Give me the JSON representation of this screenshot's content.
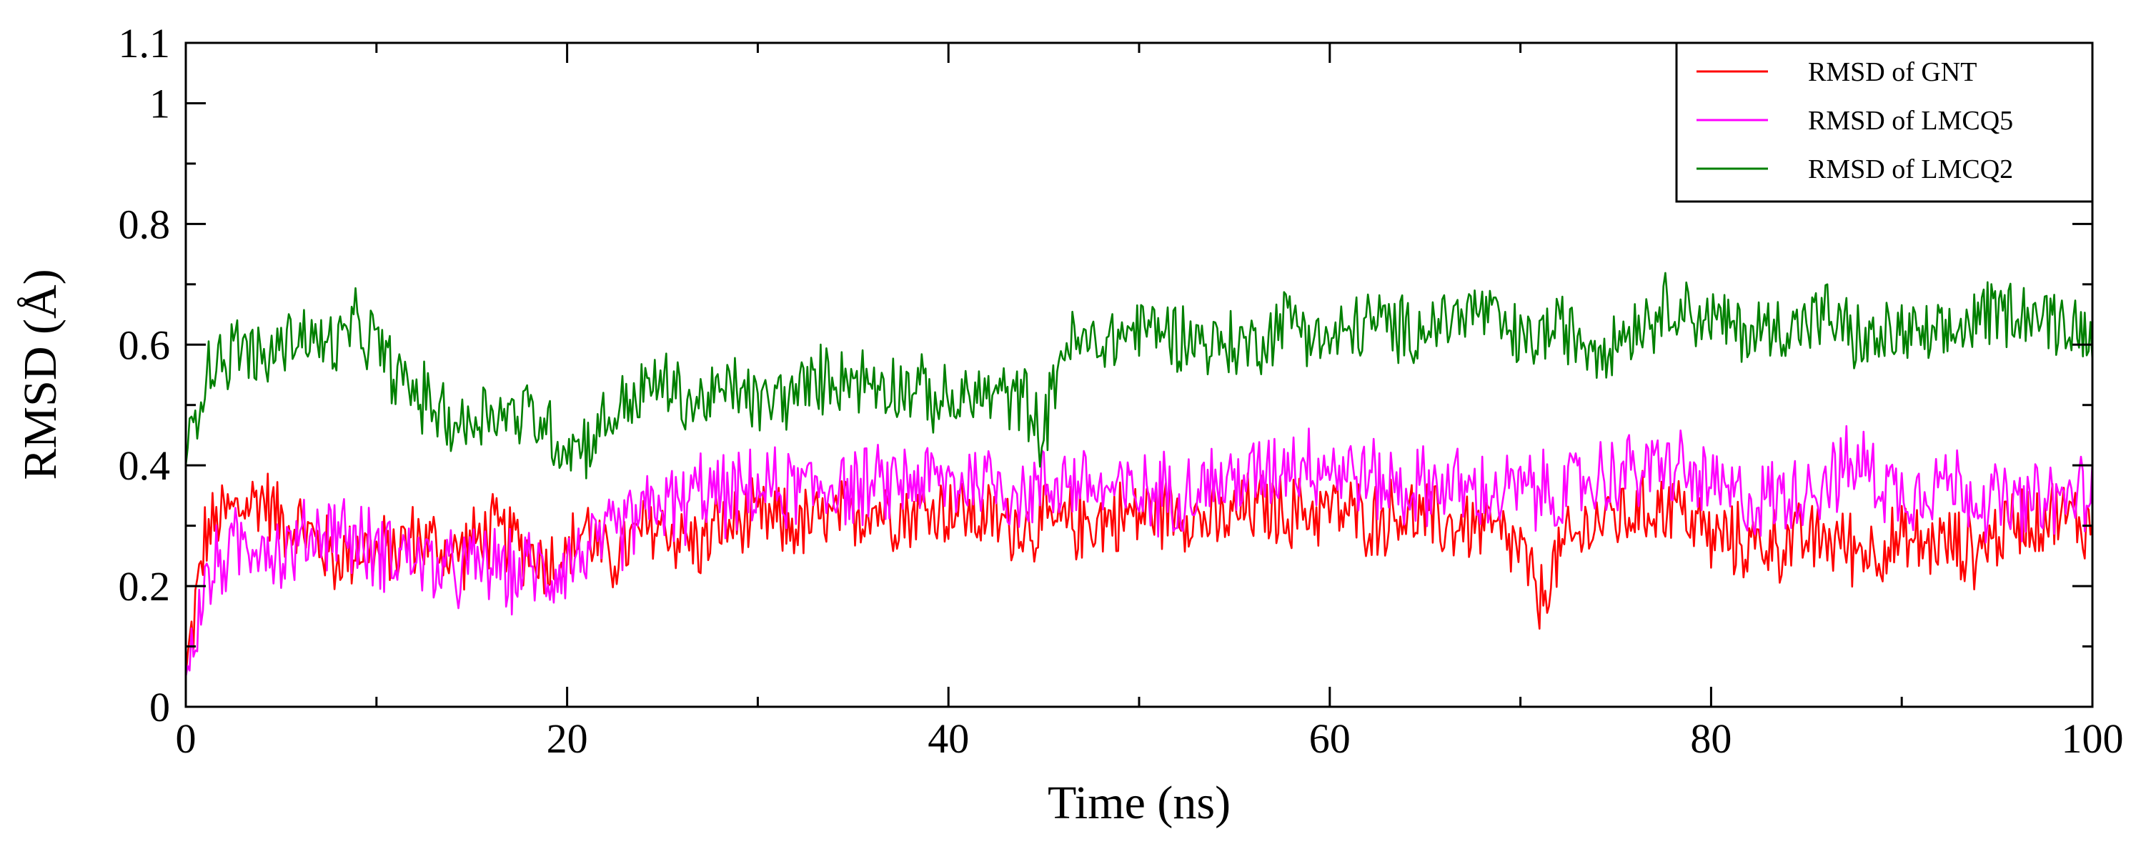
{
  "chart_data": {
    "type": "line",
    "title": "",
    "xlabel": "Time (ns)",
    "ylabel": "RMSD (Å)",
    "xlim": [
      0,
      100
    ],
    "ylim": [
      0,
      1.1
    ],
    "x_ticks": [
      0,
      20,
      40,
      60,
      80,
      100
    ],
    "x_tick_labels": [
      "0",
      "20",
      "40",
      "60",
      "80",
      "100"
    ],
    "y_ticks": [
      0,
      0.2,
      0.4,
      0.6,
      0.8,
      1,
      1.1
    ],
    "y_tick_labels": [
      "0",
      "0.2",
      "0.4",
      "0.6",
      "0.8",
      "1",
      "1.1"
    ],
    "grid": false,
    "legend_position": "top-right",
    "series": [
      {
        "name": "RMSD of GNT",
        "color": "#ff0000",
        "x": [
          0,
          1,
          2,
          3,
          4,
          5,
          6,
          7,
          8,
          9,
          10,
          11,
          12,
          13,
          14,
          15,
          16,
          17,
          18,
          19,
          20,
          21,
          22,
          23,
          24,
          25,
          26,
          27,
          28,
          29,
          30,
          32,
          34,
          36,
          38,
          40,
          42,
          44,
          46,
          48,
          50,
          52,
          54,
          56,
          58,
          60,
          62,
          64,
          66,
          68,
          70,
          71,
          72,
          74,
          76,
          78,
          80,
          82,
          84,
          86,
          88,
          90,
          92,
          94,
          96,
          98,
          100
        ],
        "values": [
          0.05,
          0.28,
          0.32,
          0.33,
          0.35,
          0.31,
          0.3,
          0.27,
          0.24,
          0.27,
          0.25,
          0.26,
          0.28,
          0.27,
          0.25,
          0.27,
          0.29,
          0.28,
          0.26,
          0.24,
          0.25,
          0.3,
          0.24,
          0.26,
          0.29,
          0.3,
          0.28,
          0.27,
          0.3,
          0.3,
          0.31,
          0.3,
          0.31,
          0.33,
          0.32,
          0.33,
          0.31,
          0.3,
          0.3,
          0.31,
          0.32,
          0.33,
          0.3,
          0.33,
          0.32,
          0.33,
          0.31,
          0.32,
          0.3,
          0.3,
          0.26,
          0.17,
          0.25,
          0.31,
          0.32,
          0.34,
          0.28,
          0.27,
          0.27,
          0.28,
          0.26,
          0.27,
          0.27,
          0.26,
          0.31,
          0.32,
          0.3
        ]
      },
      {
        "name": "RMSD of LMCQ5",
        "color": "#ff00ff",
        "x": [
          0,
          1,
          2,
          3,
          4,
          5,
          6,
          7,
          8,
          9,
          10,
          11,
          12,
          13,
          14,
          15,
          16,
          17,
          18,
          19,
          20,
          21,
          22,
          23,
          24,
          25,
          26,
          27,
          28,
          29,
          30,
          32,
          34,
          36,
          38,
          40,
          42,
          44,
          46,
          48,
          50,
          52,
          54,
          56,
          58,
          60,
          62,
          64,
          66,
          68,
          70,
          72,
          74,
          76,
          78,
          80,
          82,
          84,
          86,
          88,
          90,
          92,
          94,
          96,
          98,
          100
        ],
        "values": [
          0.05,
          0.2,
          0.25,
          0.27,
          0.28,
          0.25,
          0.27,
          0.29,
          0.3,
          0.27,
          0.26,
          0.26,
          0.25,
          0.23,
          0.22,
          0.23,
          0.24,
          0.22,
          0.23,
          0.22,
          0.24,
          0.26,
          0.27,
          0.3,
          0.32,
          0.34,
          0.33,
          0.36,
          0.35,
          0.35,
          0.36,
          0.36,
          0.37,
          0.36,
          0.38,
          0.37,
          0.38,
          0.35,
          0.38,
          0.36,
          0.35,
          0.36,
          0.37,
          0.38,
          0.41,
          0.4,
          0.38,
          0.36,
          0.37,
          0.35,
          0.36,
          0.35,
          0.38,
          0.39,
          0.4,
          0.36,
          0.34,
          0.35,
          0.38,
          0.4,
          0.35,
          0.38,
          0.35,
          0.33,
          0.34,
          0.36
        ]
      },
      {
        "name": "RMSD of LMCQ2",
        "color": "#008000",
        "x": [
          0,
          1,
          2,
          3,
          4,
          5,
          6,
          7,
          8,
          9,
          10,
          11,
          12,
          13,
          14,
          15,
          16,
          17,
          18,
          19,
          20,
          21,
          22,
          23,
          24,
          25,
          26,
          27,
          28,
          29,
          30,
          32,
          34,
          36,
          38,
          40,
          42,
          44,
          45,
          46,
          48,
          50,
          52,
          54,
          56,
          58,
          60,
          62,
          64,
          66,
          68,
          70,
          72,
          74,
          76,
          78,
          80,
          82,
          84,
          86,
          88,
          90,
          92,
          94,
          96,
          98,
          100
        ],
        "values": [
          0.4,
          0.56,
          0.58,
          0.6,
          0.57,
          0.6,
          0.62,
          0.6,
          0.6,
          0.63,
          0.6,
          0.55,
          0.52,
          0.5,
          0.47,
          0.47,
          0.5,
          0.48,
          0.49,
          0.46,
          0.43,
          0.44,
          0.47,
          0.5,
          0.52,
          0.54,
          0.51,
          0.5,
          0.52,
          0.53,
          0.5,
          0.52,
          0.55,
          0.54,
          0.53,
          0.5,
          0.52,
          0.51,
          0.45,
          0.6,
          0.6,
          0.63,
          0.62,
          0.6,
          0.6,
          0.65,
          0.6,
          0.64,
          0.62,
          0.64,
          0.66,
          0.6,
          0.63,
          0.6,
          0.63,
          0.67,
          0.64,
          0.62,
          0.63,
          0.65,
          0.6,
          0.62,
          0.6,
          0.65,
          0.66,
          0.64,
          0.62
        ]
      }
    ]
  }
}
